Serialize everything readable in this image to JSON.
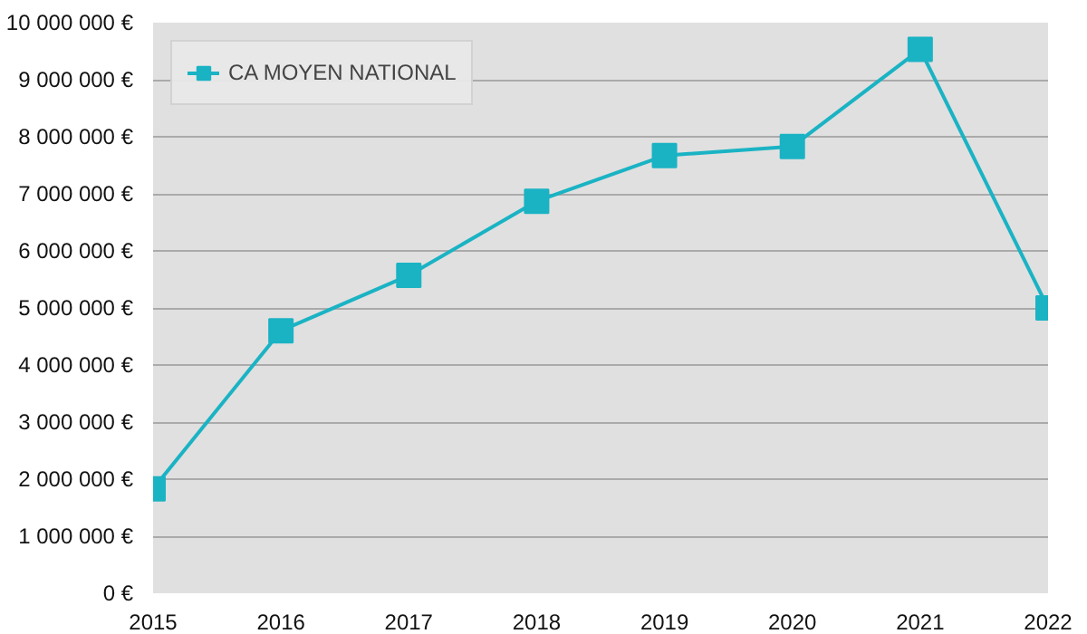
{
  "chart_data": {
    "type": "line",
    "x": [
      2015,
      2016,
      2017,
      2018,
      2019,
      2020,
      2021,
      2022
    ],
    "series": [
      {
        "name": "CA MOYEN NATIONAL",
        "color": "#1ab3c4",
        "values": [
          1830000,
          4600000,
          5570000,
          6870000,
          7670000,
          7830000,
          9530000,
          5000000
        ]
      }
    ],
    "xlim": [
      2015,
      2022
    ],
    "xticks": [
      2015,
      2016,
      2017,
      2018,
      2019,
      2020,
      2021,
      2022
    ],
    "ylim": [
      0,
      10000000
    ],
    "yticks": [
      {
        "value": 0,
        "label": "0 €"
      },
      {
        "value": 1000000,
        "label": "1 000 000 €"
      },
      {
        "value": 2000000,
        "label": "2 000 000 €"
      },
      {
        "value": 3000000,
        "label": "3 000 000 €"
      },
      {
        "value": 4000000,
        "label": "4 000 000 €"
      },
      {
        "value": 5000000,
        "label": "5 000 000 €"
      },
      {
        "value": 6000000,
        "label": "6 000 000 €"
      },
      {
        "value": 7000000,
        "label": "7 000 000 €"
      },
      {
        "value": 8000000,
        "label": "8 000 000 €"
      },
      {
        "value": 9000000,
        "label": "9 000 000 €"
      },
      {
        "value": 10000000,
        "label": "10 000 000 €"
      }
    ],
    "grid": "y",
    "legend": "top left",
    "marker": "square",
    "line_style": "solid"
  }
}
